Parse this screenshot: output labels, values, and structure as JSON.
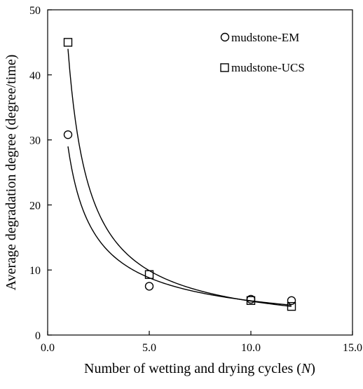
{
  "chart_data": {
    "type": "scatter",
    "xlabel": "Number of wetting and drying cycles",
    "xlabel_var": "N",
    "ylabel": "Average degradation degree (degree/time)",
    "xlim": [
      0,
      15
    ],
    "ylim": [
      0,
      50
    ],
    "x_ticks": [
      0,
      5,
      10,
      15
    ],
    "x_tick_labels": [
      "0.0",
      "5.0",
      "10.0",
      "15.0"
    ],
    "y_ticks": [
      0,
      10,
      20,
      30,
      40,
      50
    ],
    "y_tick_labels": [
      "0",
      "10",
      "20",
      "30",
      "40",
      "50"
    ],
    "grid": false,
    "legend_position": "top-right",
    "series": [
      {
        "name": "mudstone-EM",
        "marker": "circle",
        "x": [
          1,
          5,
          10,
          12
        ],
        "y": [
          30.8,
          7.5,
          5.5,
          5.3
        ],
        "fit_curve": {
          "type": "power",
          "x_range": [
            1,
            12
          ],
          "y_start": 29.0,
          "y_end": 4.6
        }
      },
      {
        "name": "mudstone-UCS",
        "marker": "square",
        "x": [
          1,
          5,
          10,
          12
        ],
        "y": [
          45.0,
          9.3,
          5.3,
          4.4
        ],
        "fit_curve": {
          "type": "power",
          "x_range": [
            1,
            12
          ],
          "y_start": 44.0,
          "y_end": 4.4
        }
      }
    ]
  }
}
